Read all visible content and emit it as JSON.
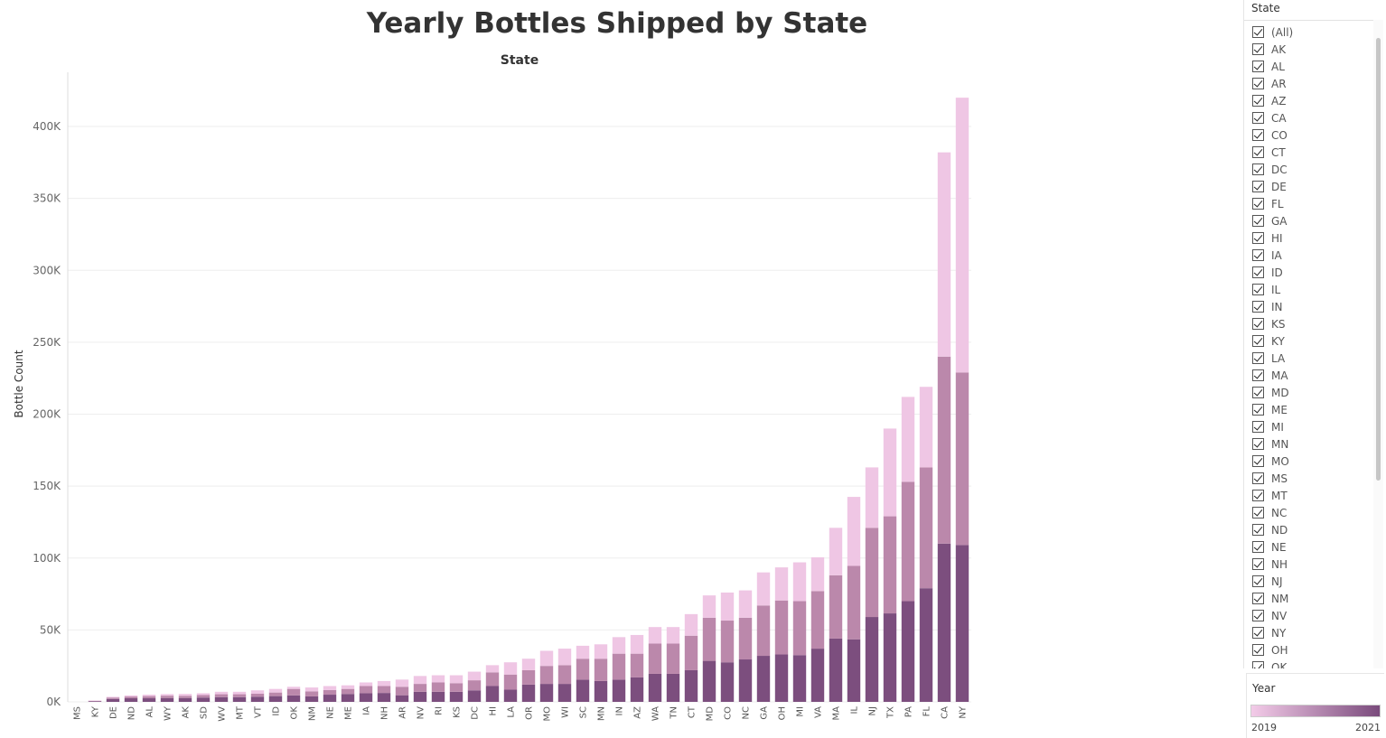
{
  "chart_data": {
    "type": "bar",
    "stacked": true,
    "title": "Yearly Bottles Shipped by State",
    "x_header": "State",
    "ylabel": "Bottle Count",
    "ylim": [
      0,
      420000
    ],
    "yticks": [
      0,
      50000,
      100000,
      150000,
      200000,
      250000,
      300000,
      350000,
      400000
    ],
    "ytick_labels": [
      "0K",
      "50K",
      "100K",
      "150K",
      "200K",
      "250K",
      "300K",
      "350K",
      "400K"
    ],
    "grid": true,
    "categories": [
      "MS",
      "KY",
      "DE",
      "ND",
      "AL",
      "WY",
      "AK",
      "SD",
      "WV",
      "MT",
      "VT",
      "ID",
      "OK",
      "NM",
      "NE",
      "ME",
      "IA",
      "NH",
      "AR",
      "NV",
      "RI",
      "KS",
      "DC",
      "HI",
      "LA",
      "OR",
      "MO",
      "WI",
      "SC",
      "MN",
      "IN",
      "AZ",
      "WA",
      "TN",
      "CT",
      "MD",
      "CO",
      "NC",
      "GA",
      "OH",
      "MI",
      "VA",
      "MA",
      "IL",
      "NJ",
      "TX",
      "PA",
      "FL",
      "CA",
      "NY"
    ],
    "series": [
      {
        "name": "2019",
        "color": "#7c4e7e",
        "values": [
          0,
          500,
          2000,
          2500,
          2500,
          2700,
          2700,
          3000,
          3300,
          3300,
          3500,
          4000,
          4500,
          3800,
          5000,
          5500,
          6000,
          6200,
          4600,
          7000,
          7000,
          7000,
          8000,
          11000,
          8500,
          12000,
          12500,
          12500,
          15500,
          14500,
          15500,
          17000,
          19500,
          19500,
          22000,
          28500,
          27500,
          29500,
          32000,
          33000,
          32500,
          37000,
          44000,
          43500,
          59000,
          61500,
          70000,
          79000,
          110000,
          109000
        ]
      },
      {
        "name": "2020",
        "color": "#bb88ab",
        "values": [
          0,
          300,
          1000,
          1200,
          1500,
          1600,
          1500,
          1700,
          2000,
          2000,
          2200,
          2500,
          4500,
          3500,
          3200,
          3500,
          5000,
          4800,
          5900,
          5500,
          6500,
          6000,
          7000,
          9500,
          10500,
          10000,
          12500,
          13000,
          14500,
          15500,
          18000,
          16500,
          21000,
          21000,
          24000,
          30000,
          29000,
          29000,
          35000,
          37500,
          37500,
          40000,
          44000,
          51000,
          62000,
          67500,
          83000,
          84000,
          130000,
          120000
        ]
      },
      {
        "name": "2021",
        "color": "#efc6e4",
        "values": [
          0,
          100,
          500,
          800,
          1000,
          1100,
          1300,
          1300,
          1700,
          1700,
          2300,
          2500,
          1500,
          2700,
          2800,
          2500,
          2500,
          3500,
          5000,
          5500,
          5000,
          5500,
          6000,
          5000,
          8500,
          8000,
          10500,
          11500,
          9000,
          10000,
          11500,
          13000,
          11500,
          11500,
          15000,
          15500,
          19500,
          19000,
          23000,
          23000,
          27000,
          23500,
          33000,
          48000,
          42000,
          61000,
          59000,
          56000,
          142000,
          191000
        ]
      }
    ]
  },
  "filter": {
    "title": "State",
    "items": [
      "(All)",
      "AK",
      "AL",
      "AR",
      "AZ",
      "CA",
      "CO",
      "CT",
      "DC",
      "DE",
      "FL",
      "GA",
      "HI",
      "IA",
      "ID",
      "IL",
      "IN",
      "KS",
      "KY",
      "LA",
      "MA",
      "MD",
      "ME",
      "MI",
      "MN",
      "MO",
      "MS",
      "MT",
      "NC",
      "ND",
      "NE",
      "NH",
      "NJ",
      "NM",
      "NV",
      "NY",
      "OH",
      "OK"
    ]
  },
  "legend": {
    "title": "Year",
    "min_label": "2019",
    "max_label": "2021",
    "color_low": "#f3cbe8",
    "color_high": "#7a4b7c"
  }
}
